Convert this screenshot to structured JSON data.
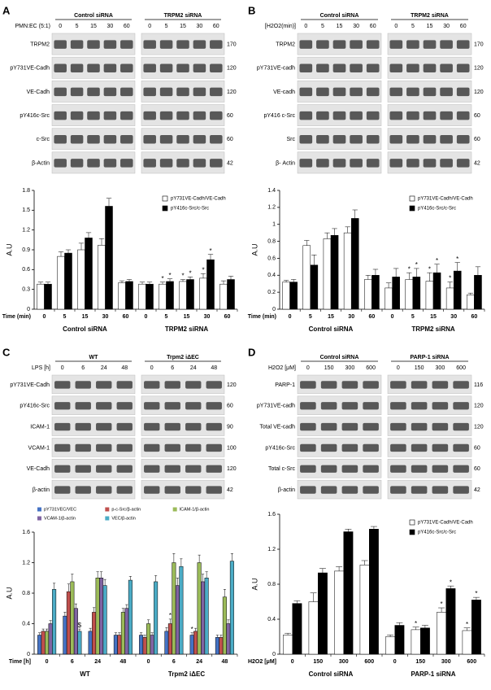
{
  "panels": [
    {
      "letter": "A",
      "header": "PMN:EC (5:1)",
      "groups": [
        {
          "name": "Control siRNA",
          "lanes": [
            "0",
            "5",
            "15",
            "30",
            "60"
          ]
        },
        {
          "name": "TRPM2 siRNA",
          "lanes": [
            "0",
            "5",
            "15",
            "30",
            "60"
          ]
        }
      ],
      "rows": [
        {
          "label": "TRPM2",
          "mw": "170"
        },
        {
          "label": "pY731VE-Cadh",
          "mw": "120"
        },
        {
          "label": "VE-Cadh",
          "mw": "120"
        },
        {
          "label": "pY416c-Src",
          "mw": "60"
        },
        {
          "label": "c-Src",
          "mw": "60"
        },
        {
          "label": "β-Actin",
          "mw": "42"
        }
      ]
    },
    {
      "letter": "B",
      "header": "[H2O2(min)]",
      "groups": [
        {
          "name": "Control siRNA",
          "lanes": [
            "0",
            "5",
            "15",
            "30",
            "60"
          ]
        },
        {
          "name": "TRPM2 siRNA",
          "lanes": [
            "0",
            "5",
            "15",
            "30",
            "60"
          ]
        }
      ],
      "rows": [
        {
          "label": "TRPM2",
          "mw": "170"
        },
        {
          "label": "pY731VE-cadh",
          "mw": "120"
        },
        {
          "label": "VE-cadh",
          "mw": "120"
        },
        {
          "label": "pY416 c-Src",
          "mw": "60"
        },
        {
          "label": "Src",
          "mw": "60"
        },
        {
          "label": "β- Actin",
          "mw": "42"
        }
      ]
    },
    {
      "letter": "C",
      "header": "LPS [h]",
      "groups": [
        {
          "name": "WT",
          "lanes": [
            "0",
            "6",
            "24",
            "48"
          ]
        },
        {
          "name": "Trpm2 iΔEC",
          "lanes": [
            "0",
            "6",
            "24",
            "48"
          ]
        }
      ],
      "rows": [
        {
          "label": "pY731VE-Cadh",
          "mw": "120"
        },
        {
          "label": "pY416c-Src",
          "mw": "60"
        },
        {
          "label": "ICAM-1",
          "mw": "90"
        },
        {
          "label": "VCAM-1",
          "mw": "100"
        },
        {
          "label": "VE-Cadh",
          "mw": "120"
        },
        {
          "label": "β-actin",
          "mw": "42"
        }
      ]
    },
    {
      "letter": "D",
      "header": "H2O2 [μM]",
      "groups": [
        {
          "name": "Control siRNA",
          "lanes": [
            "0",
            "150",
            "300",
            "600"
          ]
        },
        {
          "name": "PARP-1 siRNA",
          "lanes": [
            "0",
            "150",
            "300",
            "600"
          ]
        }
      ],
      "rows": [
        {
          "label": "PARP-1",
          "mw": "116"
        },
        {
          "label": "pY731VE-cadh",
          "mw": "120"
        },
        {
          "label": "Total VE-cadh",
          "mw": "120"
        },
        {
          "label": "pY416c-Src",
          "mw": "60"
        },
        {
          "label": "Total c-Src",
          "mw": "60"
        },
        {
          "label": "β-actin",
          "mw": "42"
        }
      ]
    }
  ],
  "chart_data": [
    {
      "type": "bar",
      "ylabel": "A.U",
      "xlabel": "Time (min)",
      "legend": "upper right",
      "categories": [
        "0",
        "5",
        "15",
        "30",
        "60",
        "0",
        "5",
        "15",
        "30",
        "60"
      ],
      "group_labels": [
        "Control siRNA",
        "TRPM2 siRNA"
      ],
      "ylim": [
        0,
        1.8
      ],
      "yticks": [
        0,
        0.3,
        0.6,
        0.9,
        1.2,
        1.5,
        1.8
      ],
      "series": [
        {
          "name": "pY731VE-Cadh/VE-Cadh",
          "color": "#ffffff",
          "values": [
            0.38,
            0.8,
            0.9,
            0.97,
            0.4,
            0.38,
            0.38,
            0.42,
            0.47,
            0.38
          ],
          "errors": [
            0.03,
            0.07,
            0.1,
            0.1,
            0.03,
            0.03,
            0.03,
            0.03,
            0.07,
            0.05
          ],
          "annotations": [
            null,
            null,
            null,
            null,
            null,
            null,
            "*",
            "*",
            "*",
            null
          ]
        },
        {
          "name": "pY416c-Src/c-Src",
          "color": "#000000",
          "values": [
            0.38,
            0.85,
            1.08,
            1.56,
            0.42,
            0.38,
            0.42,
            0.45,
            0.75,
            0.45
          ],
          "errors": [
            0.03,
            0.05,
            0.08,
            0.12,
            0.03,
            0.03,
            0.04,
            0.04,
            0.08,
            0.05
          ],
          "annotations": [
            null,
            null,
            null,
            null,
            null,
            null,
            "*",
            "*",
            "*",
            null
          ]
        }
      ]
    },
    {
      "type": "bar",
      "ylabel": "A.U",
      "xlabel": "Time (min)",
      "legend": "upper right",
      "categories": [
        "0",
        "5",
        "15",
        "30",
        "60",
        "0",
        "5",
        "15",
        "30",
        "60"
      ],
      "group_labels": [
        "Control siRNA",
        "TRPM2 siRNA"
      ],
      "ylim": [
        0,
        1.4
      ],
      "yticks": [
        0,
        0.2,
        0.4,
        0.6,
        0.8,
        1,
        1.2,
        1.4
      ],
      "series": [
        {
          "name": "pY731VE-Cadh/VE-Cadh",
          "color": "#ffffff",
          "values": [
            0.32,
            0.75,
            0.83,
            0.9,
            0.35,
            0.25,
            0.35,
            0.33,
            0.25,
            0.17
          ],
          "errors": [
            0.02,
            0.06,
            0.07,
            0.07,
            0.05,
            0.06,
            0.08,
            0.1,
            0.07,
            0.02
          ],
          "annotations": [
            null,
            null,
            null,
            null,
            null,
            null,
            "*",
            "*",
            "*",
            null
          ]
        },
        {
          "name": "pY416c-Src/c-Src",
          "color": "#000000",
          "values": [
            0.32,
            0.52,
            0.87,
            1.07,
            0.4,
            0.38,
            0.38,
            0.43,
            0.45,
            0.4
          ],
          "errors": [
            0.03,
            0.12,
            0.08,
            0.1,
            0.07,
            0.1,
            0.1,
            0.1,
            0.1,
            0.1
          ],
          "annotations": [
            null,
            null,
            null,
            null,
            null,
            null,
            "*",
            "*",
            "*",
            null
          ]
        }
      ]
    },
    {
      "type": "bar",
      "ylabel": "A.U",
      "xlabel": "Time [h]",
      "legend": "top",
      "categories": [
        "0",
        "6",
        "24",
        "48",
        "0",
        "6",
        "24",
        "48"
      ],
      "group_labels": [
        "WT",
        "Trpm2 iΔEC"
      ],
      "ylim": [
        0,
        1.6
      ],
      "yticks": [
        0,
        0.4,
        0.8,
        1.2,
        1.6
      ],
      "series": [
        {
          "name": "pY731VEC/VEC",
          "color": "#4472c4",
          "values": [
            0.25,
            0.5,
            0.3,
            0.25,
            0.25,
            0.3,
            0.25,
            0.22
          ],
          "errors": [
            0.03,
            0.05,
            0.04,
            0.03,
            0.03,
            0.05,
            0.03,
            0.03
          ],
          "annotations": [
            null,
            null,
            null,
            null,
            null,
            null,
            "*",
            null
          ]
        },
        {
          "name": "p-c-Src/β-actin",
          "color": "#c0504d",
          "values": [
            0.3,
            0.82,
            0.55,
            0.25,
            0.22,
            0.4,
            0.3,
            0.22
          ],
          "errors": [
            0.03,
            0.1,
            0.06,
            0.03,
            0.03,
            0.06,
            0.04,
            0.03
          ],
          "annotations": [
            null,
            null,
            null,
            null,
            null,
            "*",
            null,
            null
          ]
        },
        {
          "name": "ICAM-1/β-actin",
          "color": "#9bbb59",
          "values": [
            0.3,
            0.95,
            1.0,
            0.55,
            0.4,
            1.2,
            1.2,
            0.75
          ],
          "errors": [
            0.03,
            0.1,
            0.08,
            0.05,
            0.05,
            0.12,
            0.1,
            0.1
          ],
          "annotations": [
            null,
            null,
            null,
            null,
            null,
            null,
            null,
            null
          ]
        },
        {
          "name": "VCAM-1/β-actin",
          "color": "#8064a2",
          "values": [
            0.4,
            0.6,
            1.0,
            0.6,
            0.25,
            0.9,
            0.95,
            0.4
          ],
          "errors": [
            0.04,
            0.06,
            0.08,
            0.05,
            0.03,
            0.1,
            0.1,
            0.05
          ],
          "annotations": [
            null,
            null,
            null,
            null,
            null,
            null,
            null,
            null
          ]
        },
        {
          "name": "VEC/β-actin",
          "color": "#4bacc6",
          "values": [
            0.85,
            0.3,
            0.9,
            0.97,
            0.95,
            1.15,
            1.0,
            1.22
          ],
          "errors": [
            0.08,
            0.03,
            0.08,
            0.05,
            0.08,
            0.1,
            0.08,
            0.1
          ],
          "annotations": [
            null,
            "$",
            null,
            null,
            null,
            null,
            null,
            null
          ]
        }
      ]
    },
    {
      "type": "bar",
      "ylabel": "A.U",
      "xlabel": "H2O2 [μM]",
      "legend": "upper right",
      "categories": [
        "0",
        "150",
        "300",
        "600",
        "0",
        "150",
        "300",
        "600"
      ],
      "group_labels": [
        "Control siRNA",
        "PARP-1 siRNA"
      ],
      "ylim": [
        0,
        1.6
      ],
      "yticks": [
        0,
        0.4,
        0.8,
        1.2,
        1.6
      ],
      "series": [
        {
          "name": "pY731VE-Cadh/VE-Cadh",
          "color": "#ffffff",
          "values": [
            0.22,
            0.6,
            0.95,
            1.02,
            0.2,
            0.28,
            0.48,
            0.27
          ],
          "errors": [
            0.02,
            0.1,
            0.05,
            0.05,
            0.02,
            0.03,
            0.05,
            0.03
          ],
          "annotations": [
            null,
            null,
            null,
            null,
            null,
            "*",
            "*",
            "*"
          ]
        },
        {
          "name": "pY416c-Src/c-Src",
          "color": "#000000",
          "values": [
            0.58,
            0.93,
            1.4,
            1.43,
            0.33,
            0.3,
            0.75,
            0.62
          ],
          "errors": [
            0.03,
            0.05,
            0.03,
            0.03,
            0.03,
            0.03,
            0.03,
            0.03
          ],
          "annotations": [
            null,
            null,
            null,
            null,
            null,
            null,
            "*",
            "*"
          ]
        }
      ]
    }
  ]
}
